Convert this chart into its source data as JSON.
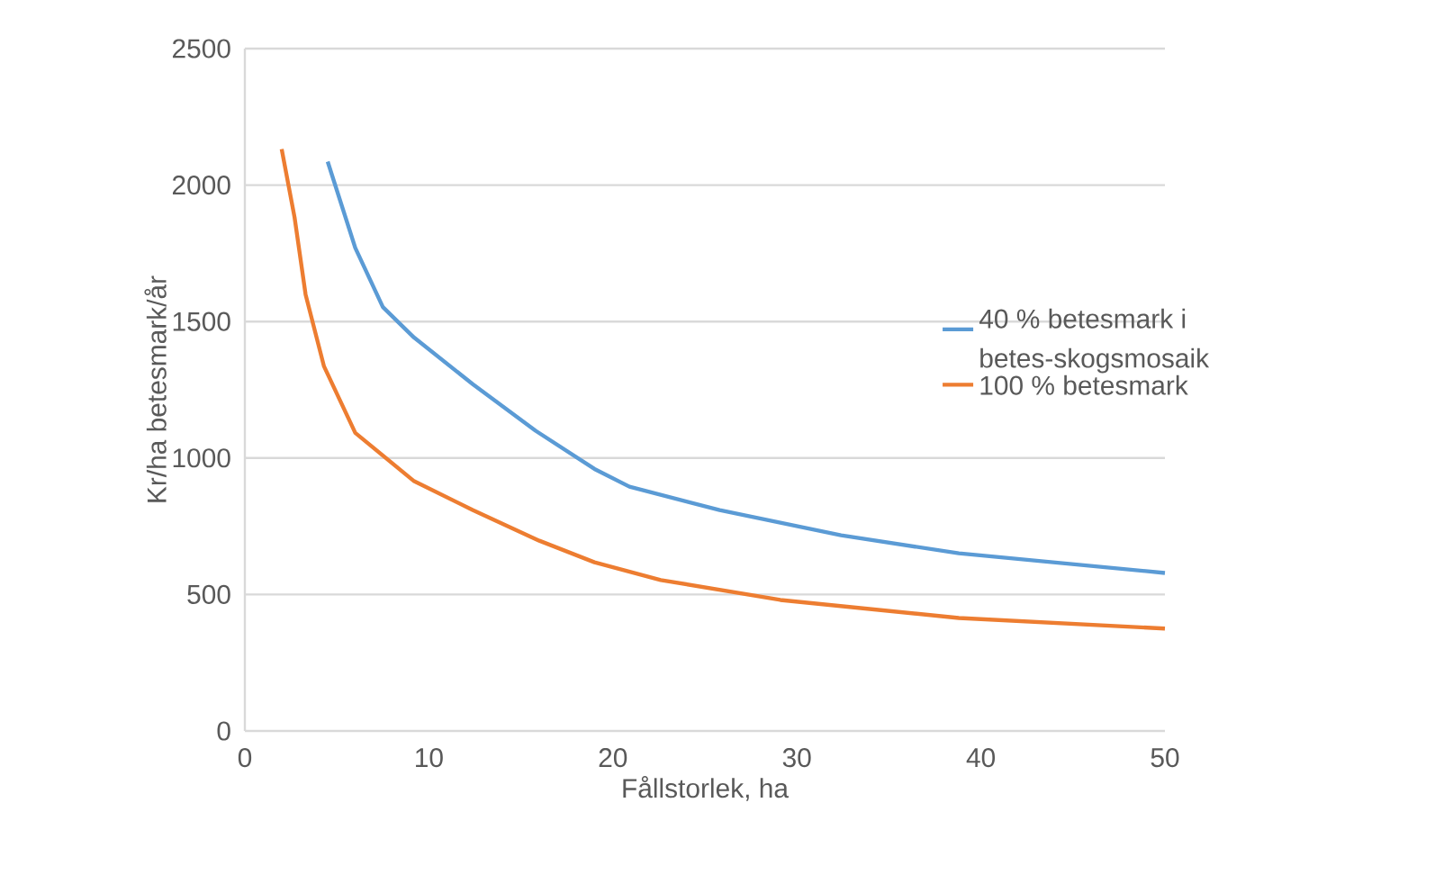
{
  "chart_data": {
    "type": "line",
    "xlabel": "Fållstorlek, ha",
    "ylabel": "Kr/ha betesmark/år",
    "xlim": [
      0,
      50
    ],
    "ylim": [
      0,
      2500
    ],
    "xticks": [
      0,
      10,
      20,
      30,
      40,
      50
    ],
    "yticks": [
      0,
      500,
      1000,
      1500,
      2000,
      2500
    ],
    "grid": "y",
    "legend": "right",
    "marker": "none",
    "line_style": "solid",
    "series": [
      {
        "name": "40 % betesmark i betes-skogsmosaik",
        "color": "#5b9bd5",
        "x": [
          4.5,
          6.0,
          7.5,
          9.2,
          12.4,
          15.8,
          19,
          20.9,
          25.8,
          32.4,
          38.8,
          50
        ],
        "values": [
          2086,
          1770,
          1553,
          1441,
          1270,
          1100,
          960,
          895,
          809,
          717,
          651,
          579
        ]
      },
      {
        "name": "100 % betesmark",
        "color": "#ed7d31",
        "x": [
          2.0,
          2.7,
          3.3,
          4.3,
          6.0,
          9.2,
          12.4,
          16,
          19,
          22.6,
          29.1,
          38.8,
          50
        ],
        "values": [
          2132,
          1882,
          1599,
          1336,
          1092,
          915,
          809,
          697,
          618,
          553,
          480,
          414,
          375
        ]
      }
    ]
  }
}
